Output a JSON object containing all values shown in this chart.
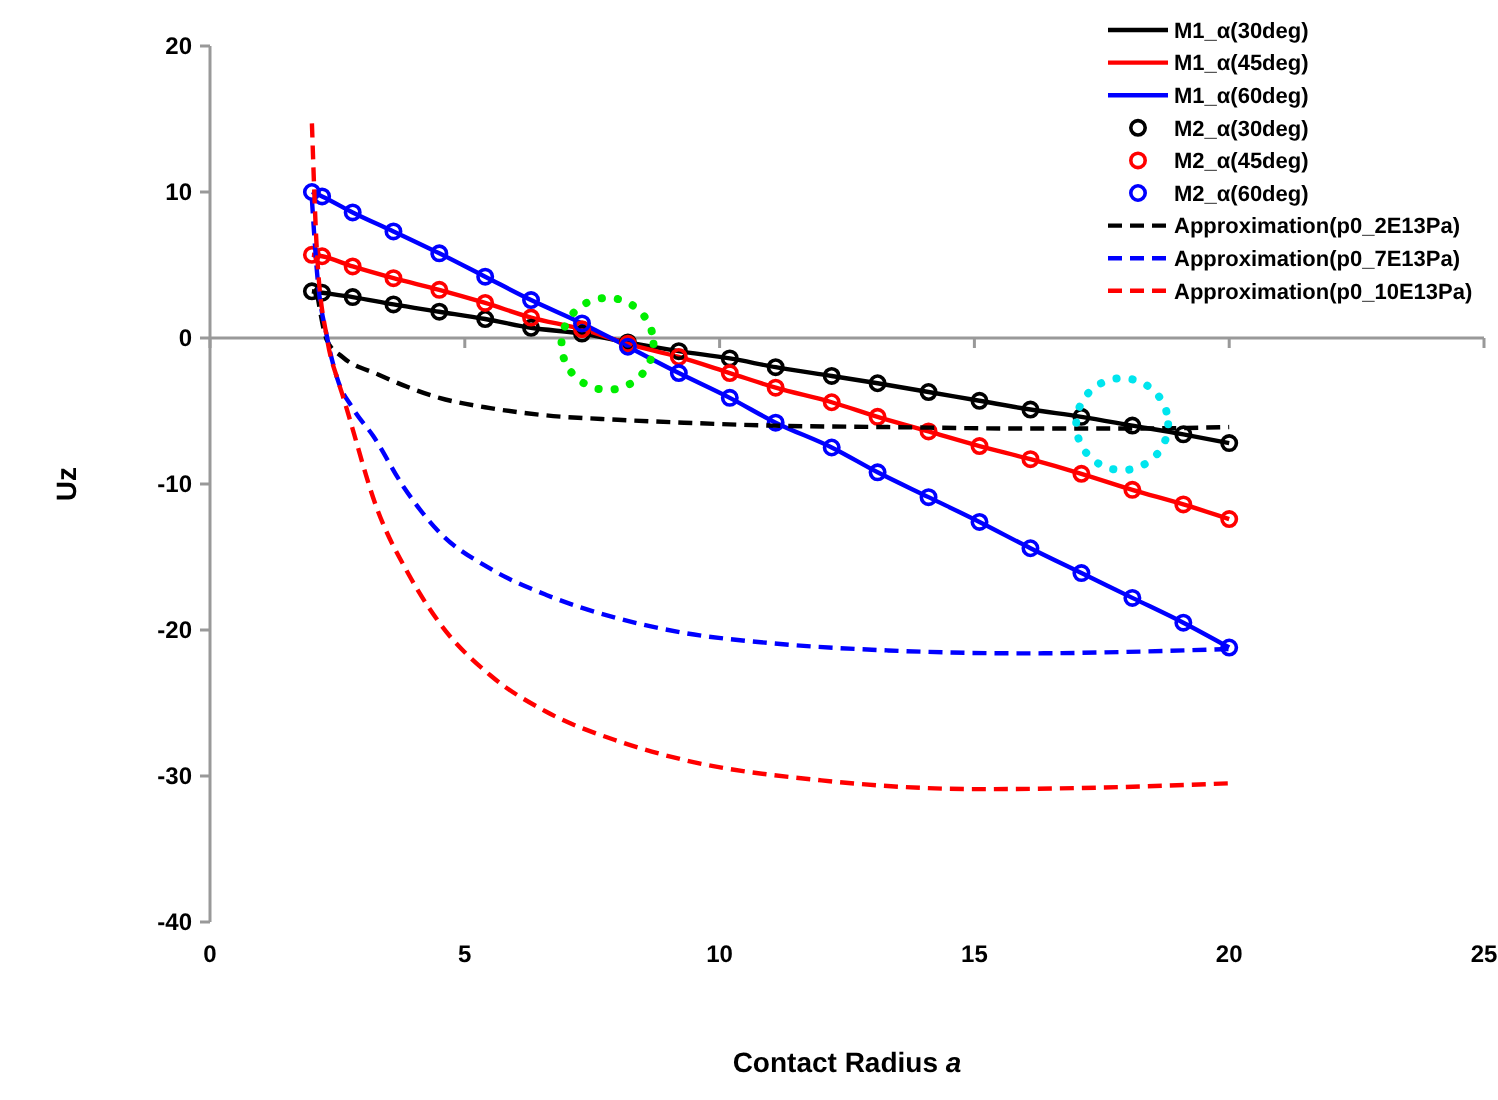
{
  "chart_data": {
    "type": "line",
    "xlabel": "Contact Radius a",
    "ylabel": "Uz",
    "xlim": [
      0,
      25
    ],
    "xticks": [
      0,
      5,
      10,
      15,
      20,
      25
    ],
    "ylim": [
      -40,
      20
    ],
    "yticks": [
      -40,
      -30,
      -20,
      -10,
      0,
      10,
      20
    ],
    "legend": "top right",
    "series": [
      {
        "name": "M1_α(30deg)",
        "color": "#000000",
        "marker": "none",
        "line_style": "solid",
        "x": [
          2,
          2.2,
          2.8,
          3.6,
          4.5,
          5.4,
          6.3,
          7.3,
          8.2,
          9.2,
          10.2,
          11.1,
          12.2,
          13.1,
          14.1,
          15.1,
          16.1,
          17.1,
          18.1,
          19.1,
          20
        ],
        "values": [
          3.2,
          3.1,
          2.8,
          2.3,
          1.8,
          1.3,
          0.7,
          0.3,
          -0.3,
          -0.9,
          -1.4,
          -2.0,
          -2.6,
          -3.1,
          -3.7,
          -4.3,
          -4.9,
          -5.4,
          -6.0,
          -6.6,
          -7.2
        ]
      },
      {
        "name": "M1_α(45deg)",
        "color": "#ff0000",
        "marker": "none",
        "line_style": "solid",
        "x": [
          2,
          2.2,
          2.8,
          3.6,
          4.5,
          5.4,
          6.3,
          7.3,
          8.2,
          9.2,
          10.2,
          11.1,
          12.2,
          13.1,
          14.1,
          15.1,
          16.1,
          17.1,
          18.1,
          19.1,
          20
        ],
        "values": [
          5.7,
          5.6,
          4.9,
          4.1,
          3.3,
          2.4,
          1.4,
          0.6,
          -0.4,
          -1.3,
          -2.4,
          -3.4,
          -4.4,
          -5.4,
          -6.4,
          -7.4,
          -8.3,
          -9.3,
          -10.4,
          -11.4,
          -12.4
        ]
      },
      {
        "name": "M1_α(60deg)",
        "color": "#0000ff",
        "marker": "none",
        "line_style": "solid",
        "x": [
          2,
          2.2,
          2.8,
          3.6,
          4.5,
          5.4,
          6.3,
          7.3,
          8.2,
          9.2,
          10.2,
          11.1,
          12.2,
          13.1,
          14.1,
          15.1,
          16.1,
          17.1,
          18.1,
          19.1,
          20
        ],
        "values": [
          10.0,
          9.7,
          8.6,
          7.3,
          5.8,
          4.2,
          2.6,
          1.0,
          -0.6,
          -2.4,
          -4.1,
          -5.8,
          -7.5,
          -9.2,
          -10.9,
          -12.6,
          -14.4,
          -16.1,
          -17.8,
          -19.5,
          -21.2
        ]
      },
      {
        "name": "M2_α(30deg)",
        "type": "scatter",
        "color": "#000000",
        "marker": "circle",
        "x": [
          2,
          2.2,
          2.8,
          3.6,
          4.5,
          5.4,
          6.3,
          7.3,
          8.2,
          9.2,
          10.2,
          11.1,
          12.2,
          13.1,
          14.1,
          15.1,
          16.1,
          17.1,
          18.1,
          19.1,
          20
        ],
        "values": [
          3.2,
          3.1,
          2.8,
          2.3,
          1.8,
          1.3,
          0.7,
          0.3,
          -0.3,
          -0.9,
          -1.4,
          -2.0,
          -2.6,
          -3.1,
          -3.7,
          -4.3,
          -4.9,
          -5.4,
          -6.0,
          -6.6,
          -7.2
        ]
      },
      {
        "name": "M2_α(45deg)",
        "type": "scatter",
        "color": "#ff0000",
        "marker": "circle",
        "x": [
          2,
          2.2,
          2.8,
          3.6,
          4.5,
          5.4,
          6.3,
          7.3,
          8.2,
          9.2,
          10.2,
          11.1,
          12.2,
          13.1,
          14.1,
          15.1,
          16.1,
          17.1,
          18.1,
          19.1,
          20
        ],
        "values": [
          5.7,
          5.6,
          4.9,
          4.1,
          3.3,
          2.4,
          1.4,
          0.6,
          -0.4,
          -1.3,
          -2.4,
          -3.4,
          -4.4,
          -5.4,
          -6.4,
          -7.4,
          -8.3,
          -9.3,
          -10.4,
          -11.4,
          -12.4
        ]
      },
      {
        "name": "M2_α(60deg)",
        "type": "scatter",
        "color": "#0000ff",
        "marker": "circle",
        "x": [
          2,
          2.2,
          2.8,
          3.6,
          4.5,
          5.4,
          6.3,
          7.3,
          8.2,
          9.2,
          10.2,
          11.1,
          12.2,
          13.1,
          14.1,
          15.1,
          16.1,
          17.1,
          18.1,
          19.1,
          20
        ],
        "values": [
          10.0,
          9.7,
          8.6,
          7.3,
          5.8,
          4.2,
          2.6,
          1.0,
          -0.6,
          -2.4,
          -4.1,
          -5.8,
          -7.5,
          -9.2,
          -10.9,
          -12.6,
          -14.4,
          -16.1,
          -17.8,
          -19.5,
          -21.2
        ]
      },
      {
        "name": "Approximation(p0_2E13Pa)",
        "color": "#000000",
        "marker": "none",
        "line_style": "dashed",
        "x": [
          2.1,
          2.3,
          2.6,
          3.3,
          4.5,
          5.5,
          6.6,
          8,
          9.3,
          11,
          13.3,
          16,
          18,
          20
        ],
        "values": [
          3.1,
          -0.2,
          -1.3,
          -2.5,
          -4.1,
          -4.8,
          -5.3,
          -5.6,
          -5.8,
          -6.0,
          -6.1,
          -6.2,
          -6.2,
          -6.1
        ]
      },
      {
        "name": "Approximation(p0_7E13Pa)",
        "color": "#0000ff",
        "marker": "none",
        "line_style": "dashed",
        "x": [
          2,
          2.1,
          2.3,
          2.5,
          2.8,
          3.2,
          3.8,
          4.5,
          5.5,
          6.6,
          8,
          9.3,
          11,
          13.3,
          16,
          18,
          20
        ],
        "values": [
          9.5,
          4.5,
          0,
          -2.8,
          -4.8,
          -6.7,
          -10.2,
          -13.3,
          -15.8,
          -17.6,
          -19.2,
          -20.2,
          -20.9,
          -21.4,
          -21.6,
          -21.5,
          -21.3
        ]
      },
      {
        "name": "Approximation(p0_10E13Pa)",
        "color": "#ff0000",
        "marker": "none",
        "line_style": "dashed",
        "x": [
          2,
          2.1,
          2.3,
          2.5,
          2.6,
          3.3,
          3.9,
          4.5,
          5.5,
          6.6,
          8,
          9.3,
          12,
          15.1,
          17.4,
          20
        ],
        "values": [
          14.7,
          5.8,
          -0.1,
          -2.8,
          -3.9,
          -11.9,
          -16.2,
          -19.5,
          -23.1,
          -25.6,
          -27.6,
          -28.9,
          -30.3,
          -30.9,
          -30.8,
          -30.5
        ]
      }
    ]
  }
}
